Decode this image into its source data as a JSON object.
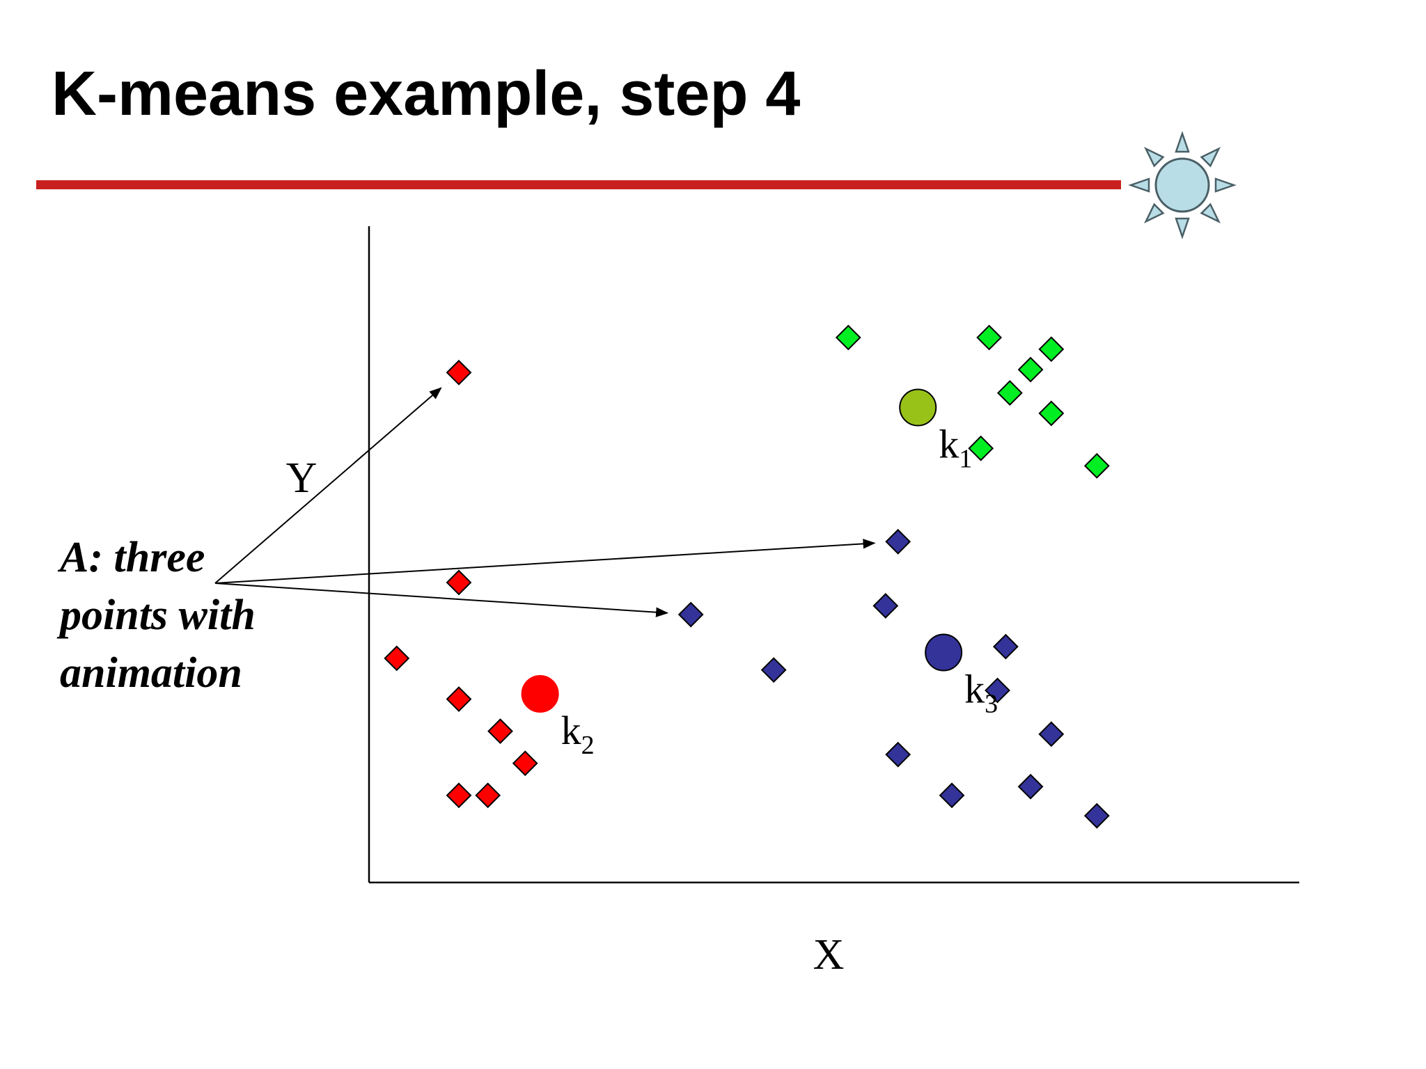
{
  "slide": {
    "title": "K-means example, step 4",
    "accent_color": "#c8201e"
  },
  "icons": {
    "decoration": "sun-icon",
    "sun_colors": {
      "fill": "#b9dde6",
      "stroke": "#4a5f66"
    }
  },
  "annotation": {
    "lines": [
      "A: three",
      "points with",
      "animation"
    ]
  },
  "chart_data": {
    "type": "scatter",
    "xlabel": "X",
    "ylabel": "Y",
    "xlim": [
      0,
      100
    ],
    "ylim": [
      0,
      100
    ],
    "grid": false,
    "clusters": [
      {
        "id": "k1",
        "label": "k",
        "subscript": "1",
        "color": "#00ee22",
        "centroid_color": "#99c219",
        "centroid": [
          65.4,
          77.5
        ],
        "points": [
          [
            57,
            89.5
          ],
          [
            74,
            89.5
          ],
          [
            81.5,
            87.5
          ],
          [
            79,
            84
          ],
          [
            76.5,
            80
          ],
          [
            81.5,
            76.5
          ],
          [
            73,
            70.5
          ],
          [
            87,
            67.5
          ]
        ]
      },
      {
        "id": "k2",
        "label": "k",
        "subscript": "2",
        "color": "#ff0000",
        "centroid_color": "#ff0000",
        "centroid": [
          19.8,
          28.4
        ],
        "points": [
          [
            10,
            83.5
          ],
          [
            10,
            47.5
          ],
          [
            2.5,
            34.5
          ],
          [
            10,
            27.5
          ],
          [
            15,
            22
          ],
          [
            18,
            16.5
          ],
          [
            10,
            11
          ],
          [
            13.5,
            11
          ]
        ]
      },
      {
        "id": "k3",
        "label": "k",
        "subscript": "3",
        "color": "#333399",
        "centroid_color": "#333399",
        "centroid": [
          68.5,
          35.5
        ],
        "points": [
          [
            63,
            54.5
          ],
          [
            38,
            42
          ],
          [
            61.5,
            43.5
          ],
          [
            48,
            32.5
          ],
          [
            76,
            36.5
          ],
          [
            75,
            29
          ],
          [
            81.5,
            21.5
          ],
          [
            63,
            18
          ],
          [
            69.5,
            11
          ],
          [
            79,
            12.5
          ],
          [
            87,
            7.5
          ]
        ]
      }
    ],
    "annotated_points": [
      [
        10,
        83.5
      ],
      [
        63,
        54.5
      ],
      [
        38,
        42
      ]
    ]
  }
}
